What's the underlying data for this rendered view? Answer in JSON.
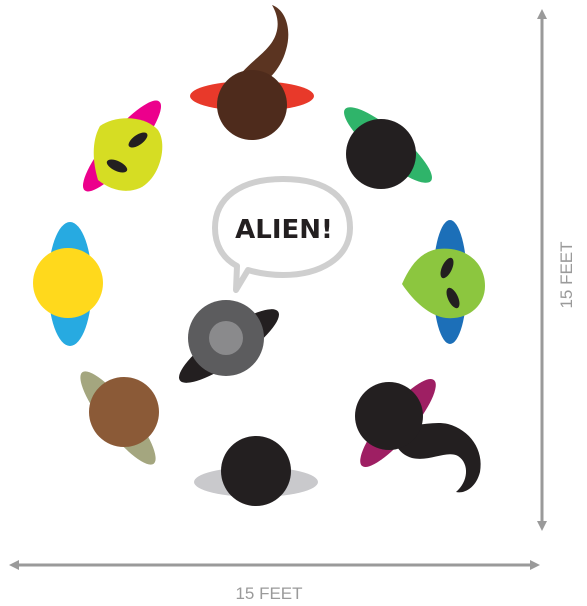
{
  "speech_bubble": {
    "text": "ALIEN!"
  },
  "dimensions": {
    "width_label": "15 FEET",
    "height_label": "15 FEET"
  },
  "colors": {
    "arrow": "#9a9a9a",
    "bubble_outline": "#cfcfcf",
    "head_black": "#231f20",
    "alien_skin_top_left": "#d6dd23",
    "alien_skin_right": "#8cc63f"
  },
  "people": [
    {
      "id": "top",
      "head": "dark-brown",
      "shoulders": "red",
      "has_hair_tail": true
    },
    {
      "id": "upper-right",
      "head": "black",
      "shoulders": "green"
    },
    {
      "id": "right-alien",
      "head": "alien-green",
      "shoulders": "blue"
    },
    {
      "id": "lower-right",
      "head": "black",
      "shoulders": "magenta",
      "has_hair_tail": true
    },
    {
      "id": "bottom",
      "head": "black",
      "shoulders": "light-gray"
    },
    {
      "id": "lower-left",
      "head": "brown",
      "shoulders": "olive"
    },
    {
      "id": "left",
      "head": "yellow",
      "shoulders": "sky-blue"
    },
    {
      "id": "upper-left-alien",
      "head": "alien-yellow",
      "shoulders": "pink"
    },
    {
      "id": "center-speaker",
      "head": "gray",
      "shoulders": "black"
    }
  ]
}
